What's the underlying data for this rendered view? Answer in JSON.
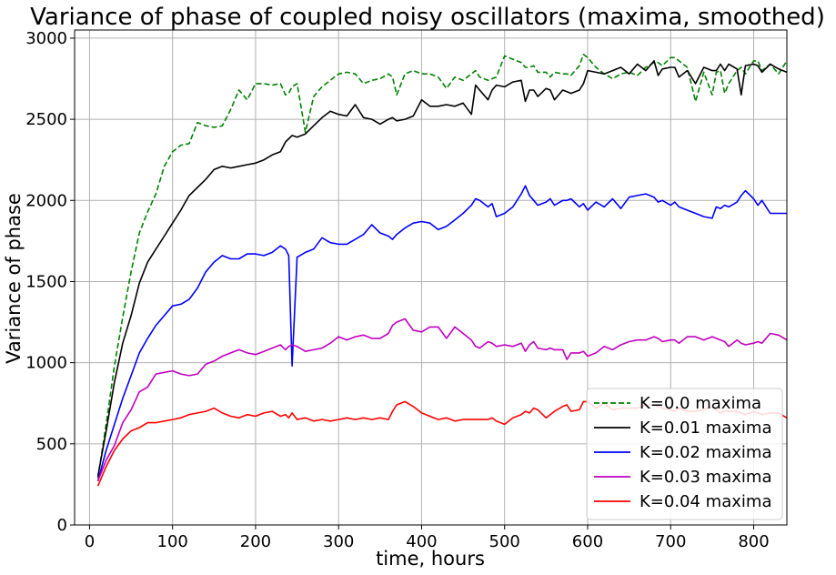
{
  "chart_data": {
    "type": "line",
    "title": "Variance of phase of coupled noisy oscillators (maxima, smoothed)",
    "xlabel": "time, hours",
    "ylabel": "Variance of phase",
    "xlim": [
      -18,
      840
    ],
    "ylim": [
      0,
      3050
    ],
    "xticks": [
      0,
      100,
      200,
      300,
      400,
      500,
      600,
      700,
      800
    ],
    "yticks": [
      0,
      500,
      1000,
      1500,
      2000,
      2500,
      3000
    ],
    "grid": true,
    "legend_position": "bottom-right",
    "x": [
      10,
      20,
      30,
      40,
      50,
      60,
      70,
      80,
      90,
      100,
      110,
      120,
      130,
      140,
      150,
      160,
      170,
      180,
      190,
      200,
      210,
      220,
      230,
      236,
      240,
      244,
      250,
      260,
      270,
      280,
      290,
      300,
      310,
      320,
      330,
      340,
      350,
      360,
      365,
      370,
      380,
      390,
      400,
      410,
      420,
      430,
      440,
      450,
      460,
      465,
      470,
      480,
      485,
      490,
      500,
      510,
      520,
      525,
      530,
      535,
      540,
      550,
      555,
      560,
      570,
      575,
      580,
      590,
      595,
      600,
      610,
      620,
      630,
      640,
      650,
      660,
      670,
      680,
      685,
      690,
      700,
      705,
      710,
      720,
      730,
      740,
      750,
      755,
      760,
      765,
      770,
      780,
      785,
      790,
      800,
      805,
      810,
      820,
      830,
      840
    ],
    "series": [
      {
        "name": "K=0.0 maxima",
        "color": "#008000",
        "dashed": true,
        "values": [
          290,
          620,
          980,
          1280,
          1560,
          1800,
          1930,
          2040,
          2210,
          2300,
          2340,
          2350,
          2480,
          2460,
          2450,
          2460,
          2560,
          2680,
          2620,
          2720,
          2720,
          2710,
          2720,
          2650,
          2660,
          2700,
          2720,
          2420,
          2640,
          2700,
          2740,
          2780,
          2790,
          2780,
          2720,
          2740,
          2750,
          2780,
          2760,
          2650,
          2780,
          2800,
          2780,
          2780,
          2760,
          2690,
          2760,
          2740,
          2780,
          2800,
          2760,
          2740,
          2750,
          2760,
          2890,
          2870,
          2850,
          2820,
          2820,
          2830,
          2790,
          2790,
          2760,
          2790,
          2780,
          2780,
          2770,
          2830,
          2900,
          2880,
          2820,
          2780,
          2750,
          2780,
          2790,
          2770,
          2820,
          2850,
          2850,
          2830,
          2880,
          2880,
          2860,
          2820,
          2610,
          2790,
          2650,
          2790,
          2800,
          2660,
          2720,
          2800,
          2820,
          2780,
          2860,
          2860,
          2800,
          2840,
          2780,
          2860
        ]
      },
      {
        "name": "K=0.01 maxima",
        "color": "#000000",
        "dashed": false,
        "values": [
          300,
          580,
          880,
          1120,
          1290,
          1490,
          1620,
          1700,
          1780,
          1860,
          1940,
          2030,
          2080,
          2130,
          2190,
          2210,
          2200,
          2210,
          2220,
          2230,
          2250,
          2280,
          2300,
          2360,
          2380,
          2400,
          2390,
          2410,
          2460,
          2510,
          2550,
          2530,
          2520,
          2590,
          2510,
          2500,
          2470,
          2500,
          2510,
          2490,
          2500,
          2520,
          2620,
          2580,
          2580,
          2590,
          2580,
          2600,
          2530,
          2710,
          2680,
          2620,
          2680,
          2710,
          2700,
          2730,
          2740,
          2610,
          2680,
          2680,
          2640,
          2690,
          2680,
          2620,
          2680,
          2670,
          2660,
          2680,
          2720,
          2800,
          2790,
          2780,
          2800,
          2820,
          2780,
          2840,
          2800,
          2860,
          2770,
          2810,
          2820,
          2820,
          2760,
          2800,
          2720,
          2820,
          2800,
          2800,
          2840,
          2800,
          2840,
          2810,
          2650,
          2830,
          2840,
          2830,
          2790,
          2840,
          2810,
          2790
        ]
      },
      {
        "name": "K=0.02 maxima",
        "color": "#0000ff",
        "dashed": false,
        "values": [
          270,
          460,
          620,
          780,
          920,
          1060,
          1150,
          1230,
          1290,
          1350,
          1360,
          1390,
          1460,
          1560,
          1620,
          1660,
          1640,
          1640,
          1670,
          1670,
          1660,
          1680,
          1720,
          1700,
          1660,
          980,
          1650,
          1680,
          1700,
          1770,
          1740,
          1730,
          1730,
          1760,
          1790,
          1850,
          1800,
          1780,
          1760,
          1790,
          1830,
          1860,
          1870,
          1860,
          1820,
          1840,
          1880,
          1920,
          1970,
          2010,
          2000,
          1960,
          1980,
          1900,
          1920,
          1960,
          2040,
          2090,
          2030,
          2000,
          1970,
          1990,
          2010,
          1970,
          2000,
          2000,
          2010,
          1960,
          1980,
          1940,
          1990,
          1960,
          2010,
          1950,
          2020,
          2030,
          2040,
          2020,
          1990,
          2000,
          1970,
          1990,
          1960,
          1940,
          1920,
          1900,
          1890,
          1960,
          1950,
          1970,
          1960,
          1990,
          2030,
          2060,
          2010,
          1970,
          2000,
          1920,
          1920,
          1920
        ]
      },
      {
        "name": "K=0.03 maxima",
        "color": "#c000c0",
        "dashed": false,
        "values": [
          270,
          400,
          490,
          630,
          710,
          820,
          850,
          930,
          940,
          950,
          930,
          920,
          930,
          990,
          1010,
          1040,
          1060,
          1080,
          1060,
          1050,
          1070,
          1090,
          1110,
          1080,
          1100,
          1110,
          1100,
          1070,
          1080,
          1090,
          1120,
          1160,
          1140,
          1160,
          1170,
          1150,
          1150,
          1180,
          1230,
          1250,
          1270,
          1200,
          1190,
          1220,
          1220,
          1150,
          1220,
          1180,
          1140,
          1100,
          1090,
          1130,
          1120,
          1100,
          1110,
          1100,
          1120,
          1070,
          1110,
          1130,
          1090,
          1080,
          1090,
          1080,
          1080,
          1020,
          1060,
          1060,
          1070,
          1040,
          1060,
          1100,
          1080,
          1110,
          1130,
          1140,
          1140,
          1160,
          1150,
          1130,
          1140,
          1140,
          1120,
          1160,
          1160,
          1140,
          1160,
          1150,
          1140,
          1130,
          1100,
          1140,
          1120,
          1110,
          1120,
          1130,
          1120,
          1180,
          1170,
          1140
        ]
      },
      {
        "name": "K=0.04 maxima",
        "color": "#ff0000",
        "dashed": false,
        "values": [
          240,
          360,
          460,
          530,
          580,
          600,
          630,
          630,
          640,
          650,
          660,
          680,
          690,
          700,
          720,
          690,
          670,
          660,
          680,
          670,
          690,
          700,
          670,
          680,
          660,
          690,
          650,
          660,
          640,
          650,
          640,
          650,
          660,
          650,
          660,
          650,
          660,
          650,
          700,
          740,
          760,
          730,
          690,
          670,
          650,
          660,
          640,
          650,
          650,
          650,
          650,
          650,
          660,
          640,
          620,
          660,
          680,
          700,
          690,
          720,
          710,
          660,
          680,
          700,
          730,
          740,
          700,
          710,
          760,
          760,
          720,
          750,
          710,
          720,
          720,
          720,
          740,
          740,
          730,
          720,
          710,
          700,
          720,
          700,
          700,
          710,
          730,
          710,
          690,
          700,
          700,
          700,
          690,
          680,
          700,
          690,
          680,
          690,
          690,
          660
        ]
      }
    ]
  }
}
